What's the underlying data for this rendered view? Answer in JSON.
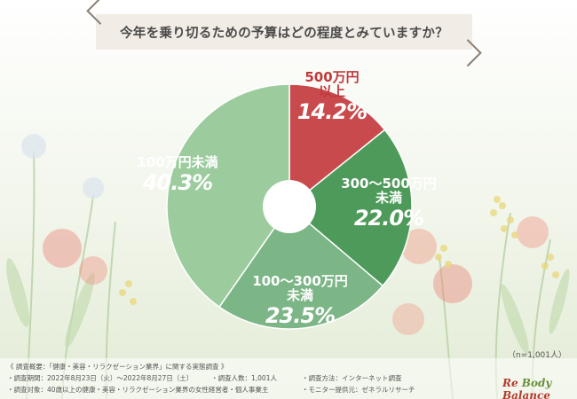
{
  "title": "今年を乗り切るための予算はどの程度とみていますか？",
  "chart_data": {
    "type": "pie",
    "title": "今年を乗り切るための予算はどの程度とみていますか？",
    "slices": [
      {
        "label": "500万円以上",
        "label_lines": [
          "500万円",
          "以上"
        ],
        "value": 14.2,
        "value_text": "14.2%",
        "color": "#c94a4c"
      },
      {
        "label": "300〜500万円未満",
        "label_lines": [
          "300〜500万円",
          "未満"
        ],
        "value": 22.0,
        "value_text": "22.0%",
        "color": "#4e9a5a"
      },
      {
        "label": "100〜300万円未満",
        "label_lines": [
          "100〜300万円",
          "未満"
        ],
        "value": 23.5,
        "value_text": "23.5%",
        "color": "#7cb586"
      },
      {
        "label": "100万円未満",
        "label_lines": [
          "100万円未満"
        ],
        "value": 40.3,
        "value_text": "40.3%",
        "color": "#9ccc9e"
      }
    ],
    "donut_hole": true
  },
  "sample_size": "（n=1,001人）",
  "footer": {
    "survey_overview": "《 調査概要：「健康・美容・リラクゼーション業界」に関する実態調査 》",
    "period": "・調査期間：2022年8月23日（火）〜2022年8月27日（土）",
    "respondents": "・調査人数：1,001人",
    "method": "・調査方法：インターネット調査",
    "target": "・調査対象：40歳以上の健康・美容・リラクゼーション業界の女性経営者・個人事業主",
    "provider": "・モニター提供元：ゼネラルリサーチ"
  },
  "brand": {
    "part1": "Re",
    "part2": "Body",
    "part3": "Balance"
  }
}
